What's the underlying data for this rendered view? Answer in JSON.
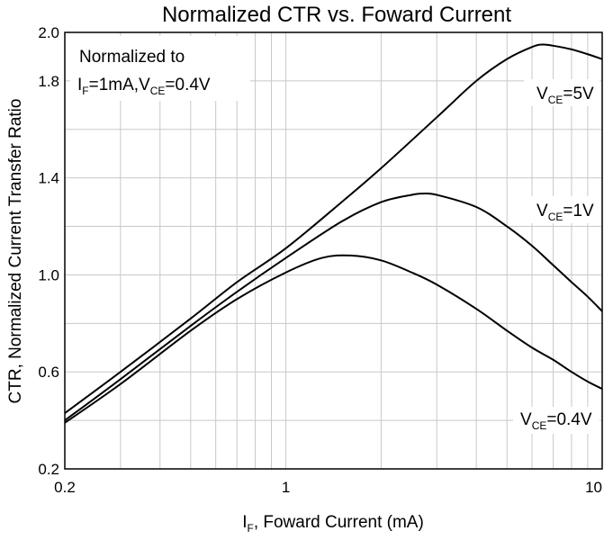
{
  "chart_data": {
    "type": "line",
    "title": "Normalized CTR vs. Foward Current",
    "xlabel": {
      "main": "I",
      "sub": "F",
      "rest": ", Foward Current (mA)"
    },
    "ylabel": "CTR, Normalized Current Transfer Ratio",
    "x_scale": "log",
    "xlim": [
      0.2,
      10
    ],
    "ylim": [
      0.2,
      2.0
    ],
    "x_ticks": [
      {
        "value": 0.2,
        "label": "0.2"
      },
      {
        "value": 1,
        "label": "1"
      },
      {
        "value": 10,
        "label": "10"
      }
    ],
    "y_ticks": [
      {
        "value": 0.2,
        "label": "0.2"
      },
      {
        "value": 0.6,
        "label": "0.6"
      },
      {
        "value": 1.0,
        "label": "1.0"
      },
      {
        "value": 1.4,
        "label": "1.4"
      },
      {
        "value": 1.8,
        "label": "1.8"
      },
      {
        "value": 2.0,
        "label": "2.0"
      }
    ],
    "grid": true,
    "annotation": {
      "line1": "Normalized to",
      "line2_main": "I",
      "line2_sub": "F",
      "line2_mid": "=1mA,V",
      "line2_sub2": "CE",
      "line2_end": "=0.4V"
    },
    "series": [
      {
        "label_main": "V",
        "label_sub": "CE",
        "label_end": "=5V",
        "x": [
          0.2,
          0.3,
          0.5,
          0.7,
          1.0,
          1.5,
          2.0,
          3.0,
          4.0,
          5.0,
          6.0,
          6.5,
          7.0,
          8.0,
          9.0,
          10.0
        ],
        "y": [
          0.43,
          0.6,
          0.82,
          0.97,
          1.11,
          1.3,
          1.44,
          1.65,
          1.8,
          1.89,
          1.94,
          1.95,
          1.945,
          1.93,
          1.91,
          1.89
        ]
      },
      {
        "label_main": "V",
        "label_sub": "CE",
        "label_end": "=1V",
        "x": [
          0.2,
          0.3,
          0.5,
          0.7,
          1.0,
          1.5,
          2.0,
          2.5,
          2.7,
          3.0,
          4.0,
          5.0,
          6.0,
          7.0,
          8.0,
          9.0,
          10.0
        ],
        "y": [
          0.4,
          0.57,
          0.79,
          0.93,
          1.07,
          1.22,
          1.3,
          1.33,
          1.335,
          1.33,
          1.28,
          1.2,
          1.12,
          1.04,
          0.97,
          0.91,
          0.85
        ]
      },
      {
        "label_main": "V",
        "label_sub": "CE",
        "label_end": "=0.4V",
        "x": [
          0.2,
          0.3,
          0.5,
          0.7,
          1.0,
          1.3,
          1.6,
          2.0,
          2.5,
          3.0,
          4.0,
          5.0,
          6.0,
          7.0,
          8.0,
          9.0,
          10.0
        ],
        "y": [
          0.39,
          0.55,
          0.77,
          0.9,
          1.01,
          1.07,
          1.08,
          1.06,
          1.01,
          0.96,
          0.86,
          0.77,
          0.7,
          0.65,
          0.6,
          0.56,
          0.53
        ]
      }
    ]
  }
}
